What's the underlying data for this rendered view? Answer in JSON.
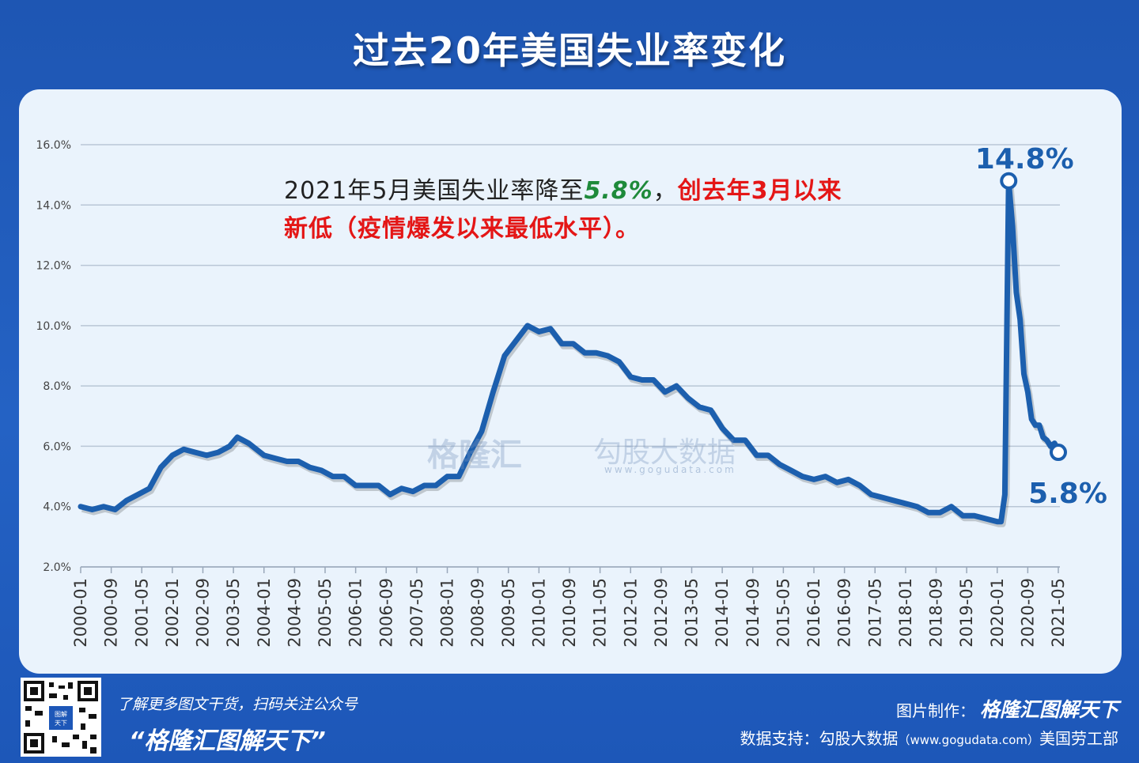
{
  "title": "过去20年美国失业率变化",
  "annotation": {
    "line1_prefix": "2021年5月美国失业率降至",
    "line1_value": "5.8%",
    "line1_sep": "，",
    "line1_red": "创去年3月以来",
    "line2_red": "新低（疫情爆发以来最低水平）。"
  },
  "watermark": {
    "brand": "格隆汇",
    "brand2": "勾股大数据",
    "url": "www.gogudata.com"
  },
  "footer": {
    "qr_badge": "图解天下",
    "left_line1": "了解更多图文干货，扫码关注公众号",
    "left_line2": "“格隆汇图解天下”",
    "right_line1_prefix": "图片制作：",
    "right_line1_brand": "格隆汇图解天下",
    "right_line2_prefix": "数据支持：勾股大数据",
    "right_line2_url": "（www.gogudata.com）",
    "right_line2_suffix": "美国劳工部"
  },
  "colors": {
    "background": "#2462c4",
    "card": "#eaf3fc",
    "line": "#1c5fae",
    "grid": "#b9c6d6",
    "highlight_green": "#1e8a3a",
    "highlight_red": "#e41616"
  },
  "chart_data": {
    "type": "line",
    "title": "过去20年美国失业率变化",
    "xlabel": "",
    "ylabel": "",
    "ylim": [
      2.0,
      16.0
    ],
    "grid": true,
    "y_ticks": [
      "2.0%",
      "4.0%",
      "6.0%",
      "8.0%",
      "10.0%",
      "12.0%",
      "14.0%",
      "16.0%"
    ],
    "x_tick_labels": [
      "2000-01",
      "2000-09",
      "2001-05",
      "2002-01",
      "2002-09",
      "2003-05",
      "2004-01",
      "2004-09",
      "2005-05",
      "2006-01",
      "2006-09",
      "2007-05",
      "2008-01",
      "2008-09",
      "2009-05",
      "2010-01",
      "2010-09",
      "2011-05",
      "2012-01",
      "2012-09",
      "2013-05",
      "2014-01",
      "2014-09",
      "2015-05",
      "2016-01",
      "2016-09",
      "2017-05",
      "2018-01",
      "2018-09",
      "2019-05",
      "2020-01",
      "2020-09",
      "2021-05"
    ],
    "point_labels": [
      {
        "x": "2020-04",
        "y": 14.8,
        "text": "14.8%"
      },
      {
        "x": "2021-05",
        "y": 5.8,
        "text": "5.8%"
      }
    ],
    "series": [
      {
        "points": [
          [
            "2000-01",
            4.0
          ],
          [
            "2000-04",
            3.9
          ],
          [
            "2000-07",
            4.0
          ],
          [
            "2000-10",
            3.9
          ],
          [
            "2001-01",
            4.2
          ],
          [
            "2001-04",
            4.4
          ],
          [
            "2001-07",
            4.6
          ],
          [
            "2001-10",
            5.3
          ],
          [
            "2002-01",
            5.7
          ],
          [
            "2002-04",
            5.9
          ],
          [
            "2002-07",
            5.8
          ],
          [
            "2002-10",
            5.7
          ],
          [
            "2003-01",
            5.8
          ],
          [
            "2003-04",
            6.0
          ],
          [
            "2003-06",
            6.3
          ],
          [
            "2003-09",
            6.1
          ],
          [
            "2004-01",
            5.7
          ],
          [
            "2004-04",
            5.6
          ],
          [
            "2004-07",
            5.5
          ],
          [
            "2004-10",
            5.5
          ],
          [
            "2005-01",
            5.3
          ],
          [
            "2005-04",
            5.2
          ],
          [
            "2005-07",
            5.0
          ],
          [
            "2005-10",
            5.0
          ],
          [
            "2006-01",
            4.7
          ],
          [
            "2006-04",
            4.7
          ],
          [
            "2006-07",
            4.7
          ],
          [
            "2006-10",
            4.4
          ],
          [
            "2007-01",
            4.6
          ],
          [
            "2007-04",
            4.5
          ],
          [
            "2007-07",
            4.7
          ],
          [
            "2007-10",
            4.7
          ],
          [
            "2008-01",
            5.0
          ],
          [
            "2008-04",
            5.0
          ],
          [
            "2008-07",
            5.8
          ],
          [
            "2008-10",
            6.5
          ],
          [
            "2009-01",
            7.8
          ],
          [
            "2009-04",
            9.0
          ],
          [
            "2009-07",
            9.5
          ],
          [
            "2009-10",
            10.0
          ],
          [
            "2010-01",
            9.8
          ],
          [
            "2010-04",
            9.9
          ],
          [
            "2010-07",
            9.4
          ],
          [
            "2010-10",
            9.4
          ],
          [
            "2011-01",
            9.1
          ],
          [
            "2011-04",
            9.1
          ],
          [
            "2011-07",
            9.0
          ],
          [
            "2011-10",
            8.8
          ],
          [
            "2012-01",
            8.3
          ],
          [
            "2012-04",
            8.2
          ],
          [
            "2012-07",
            8.2
          ],
          [
            "2012-10",
            7.8
          ],
          [
            "2013-01",
            8.0
          ],
          [
            "2013-04",
            7.6
          ],
          [
            "2013-07",
            7.3
          ],
          [
            "2013-10",
            7.2
          ],
          [
            "2014-01",
            6.6
          ],
          [
            "2014-04",
            6.2
          ],
          [
            "2014-07",
            6.2
          ],
          [
            "2014-10",
            5.7
          ],
          [
            "2015-01",
            5.7
          ],
          [
            "2015-04",
            5.4
          ],
          [
            "2015-07",
            5.2
          ],
          [
            "2015-10",
            5.0
          ],
          [
            "2016-01",
            4.9
          ],
          [
            "2016-04",
            5.0
          ],
          [
            "2016-07",
            4.8
          ],
          [
            "2016-10",
            4.9
          ],
          [
            "2017-01",
            4.7
          ],
          [
            "2017-04",
            4.4
          ],
          [
            "2017-07",
            4.3
          ],
          [
            "2017-10",
            4.2
          ],
          [
            "2018-01",
            4.1
          ],
          [
            "2018-04",
            4.0
          ],
          [
            "2018-07",
            3.8
          ],
          [
            "2018-10",
            3.8
          ],
          [
            "2019-01",
            4.0
          ],
          [
            "2019-04",
            3.7
          ],
          [
            "2019-07",
            3.7
          ],
          [
            "2019-10",
            3.6
          ],
          [
            "2020-01",
            3.5
          ],
          [
            "2020-02",
            3.5
          ],
          [
            "2020-03",
            4.4
          ],
          [
            "2020-04",
            14.8
          ],
          [
            "2020-05",
            13.3
          ],
          [
            "2020-06",
            11.1
          ],
          [
            "2020-07",
            10.2
          ],
          [
            "2020-08",
            8.4
          ],
          [
            "2020-09",
            7.8
          ],
          [
            "2020-10",
            6.9
          ],
          [
            "2020-11",
            6.7
          ],
          [
            "2020-12",
            6.7
          ],
          [
            "2021-01",
            6.3
          ],
          [
            "2021-02",
            6.2
          ],
          [
            "2021-03",
            6.0
          ],
          [
            "2021-04",
            6.1
          ],
          [
            "2021-05",
            5.8
          ]
        ]
      }
    ]
  }
}
